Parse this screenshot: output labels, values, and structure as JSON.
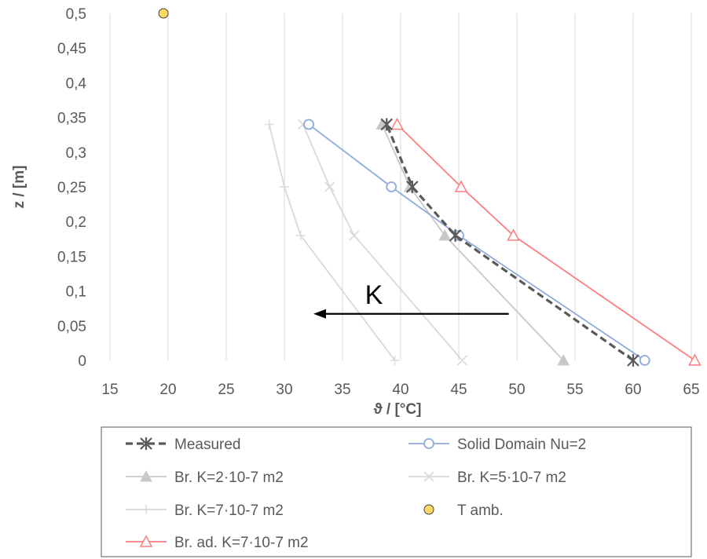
{
  "chart_data": {
    "type": "scatter",
    "title": "",
    "xlabel": "ϑ / [°C]",
    "ylabel": "z / [m]",
    "xlim": [
      15,
      65
    ],
    "ylim": [
      0,
      0.5
    ],
    "x_ticks": [
      "15",
      "20",
      "25",
      "30",
      "35",
      "40",
      "45",
      "50",
      "55",
      "60",
      "65"
    ],
    "y_ticks": [
      "0",
      "0,05",
      "0,1",
      "0,15",
      "0,2",
      "0,25",
      "0,3",
      "0,35",
      "0,4",
      "0,45",
      "0,5"
    ],
    "grid": "vertical",
    "legend_position": "bottom",
    "series": [
      {
        "name": "Measured",
        "color": "#595959",
        "marker": "asterisk",
        "line": "dashed",
        "x": [
          60.0,
          44.7,
          41.0,
          38.8
        ],
        "y": [
          0,
          0.18,
          0.25,
          0.34
        ]
      },
      {
        "name": "Solid Domain Nu=2",
        "color": "#8faadc",
        "marker": "circle",
        "line": "solid",
        "x": [
          61.0,
          45.0,
          39.2,
          32.1
        ],
        "y": [
          0,
          0.18,
          0.25,
          0.34
        ]
      },
      {
        "name": "Br. K=2·10-7 m2",
        "color": "#c8c8c8",
        "marker": "filled-triangle",
        "line": "solid",
        "x": [
          54.0,
          43.8,
          40.8,
          38.4
        ],
        "y": [
          0,
          0.18,
          0.25,
          0.34
        ]
      },
      {
        "name": "Br. K=5·10-7 m2",
        "color": "#d9d9d9",
        "marker": "x",
        "line": "solid",
        "x": [
          45.3,
          36.0,
          33.9,
          31.6
        ],
        "y": [
          0,
          0.18,
          0.25,
          0.34
        ]
      },
      {
        "name": "Br. K=7·10-7 m2",
        "color": "#d9d9d9",
        "marker": "plus",
        "line": "solid",
        "x": [
          39.5,
          31.4,
          30.0,
          28.7
        ],
        "y": [
          0,
          0.18,
          0.25,
          0.34
        ]
      },
      {
        "name": "T amb.",
        "color": "#ffd966",
        "marker": "filled-circle",
        "line": "none",
        "x": [
          19.6
        ],
        "y": [
          0.5
        ]
      },
      {
        "name": "Br. ad. K=7·10-7 m2",
        "color": "#ff7c80",
        "marker": "triangle",
        "line": "solid",
        "x": [
          65.3,
          49.7,
          45.2,
          39.7
        ],
        "y": [
          0,
          0.18,
          0.25,
          0.34
        ]
      }
    ],
    "annotations": [
      {
        "text": "K",
        "arrow": {
          "from": [
            49.3,
            0.067
          ],
          "to": [
            32.5,
            0.067
          ]
        }
      }
    ]
  }
}
